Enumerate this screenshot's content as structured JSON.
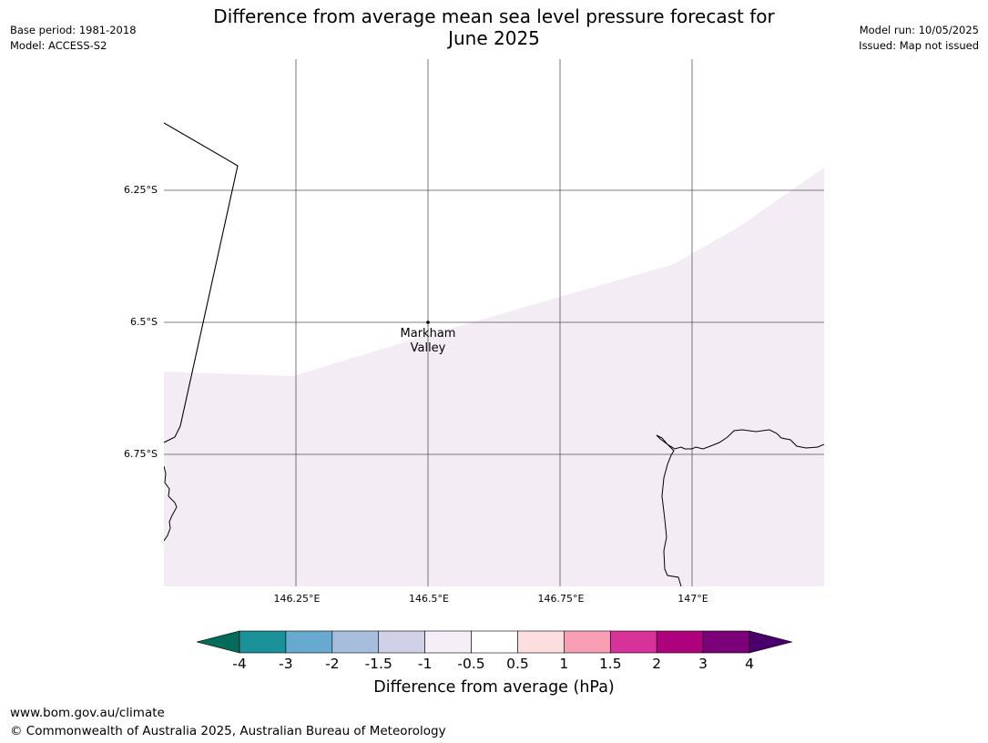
{
  "header": {
    "title_line1": "Difference from average mean sea level pressure forecast for",
    "title_line2": "June 2025",
    "base_period": "Base period: 1981-2018",
    "model": "Model: ACCESS-S2",
    "model_run": "Model run: 10/05/2025",
    "issued": "Issued: Map not issued"
  },
  "map": {
    "lat_labels": [
      "6.25°S",
      "6.5°S",
      "6.75°S"
    ],
    "lon_labels": [
      "146.25°E",
      "146.5°E",
      "146.75°E",
      "147°E"
    ],
    "place": {
      "name_line1": "Markham",
      "name_line2": "Valley"
    },
    "shaded_category": "-1 to -0.5",
    "shade_color": "#f3ecf5"
  },
  "colorbar": {
    "title": "Difference from average (hPa)",
    "ticks": [
      "-4",
      "-3",
      "-2",
      "-1.5",
      "-1",
      "-0.5",
      "0.5",
      "1",
      "1.5",
      "2",
      "3",
      "4"
    ],
    "colors": [
      "#1a9098",
      "#67a9cf",
      "#a6bddb",
      "#d0d1e6",
      "#f5eef6",
      "#ffffff",
      "#fddede",
      "#f89fb6",
      "#d7329a",
      "#ae017e",
      "#7a0177"
    ],
    "under_color": "#016c59",
    "over_color": "#49006a"
  },
  "footer": {
    "url": "www.bom.gov.au/climate",
    "copyright": "© Commonwealth of Australia 2025, Australian Bureau of Meteorology"
  }
}
